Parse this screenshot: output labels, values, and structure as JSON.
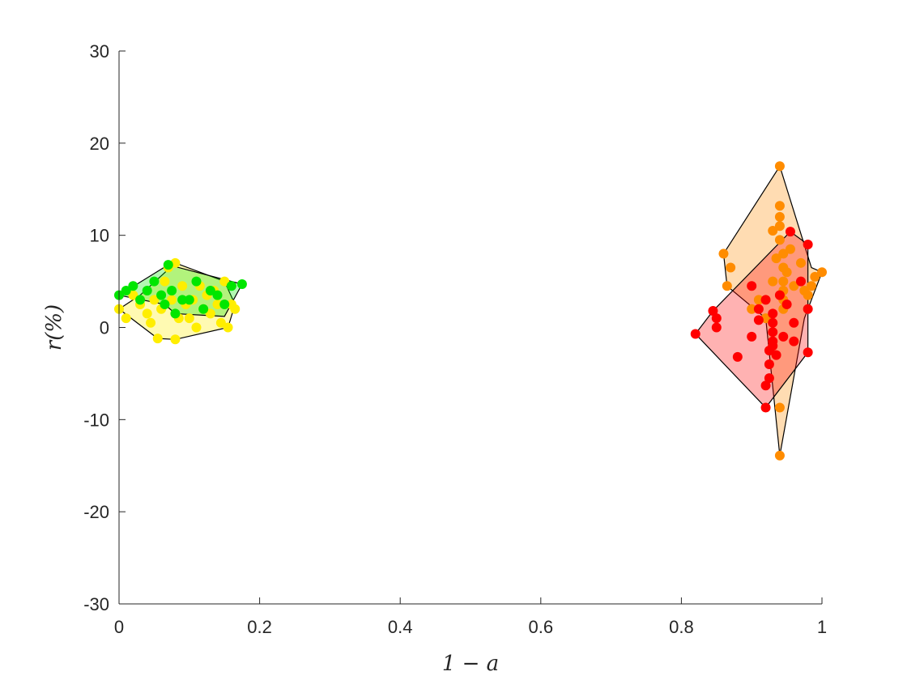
{
  "chart_data": {
    "type": "scatter",
    "title": "",
    "xlabel": "1 − a",
    "ylabel": "r(%)",
    "xlim": [
      0,
      1
    ],
    "ylim": [
      -30,
      30
    ],
    "xticks": [
      0,
      0.2,
      0.4,
      0.6,
      0.8,
      1
    ],
    "yticks": [
      -30,
      -20,
      -10,
      0,
      10,
      20,
      30
    ],
    "xtick_labels": [
      "0",
      "0.2",
      "0.4",
      "0.6",
      "0.8",
      "1"
    ],
    "ytick_labels": [
      "-30",
      "-20",
      "-10",
      "0",
      "10",
      "20",
      "30"
    ],
    "grid": false,
    "series": [
      {
        "color": "#ffee00",
        "fill_opacity": 0.3,
        "points": [
          [
            0.0,
            2.0
          ],
          [
            0.01,
            1.0
          ],
          [
            0.02,
            3.5
          ],
          [
            0.03,
            2.5
          ],
          [
            0.04,
            1.5
          ],
          [
            0.045,
            0.5
          ],
          [
            0.05,
            3.0
          ],
          [
            0.055,
            -1.2
          ],
          [
            0.06,
            2.0
          ],
          [
            0.065,
            5.0
          ],
          [
            0.07,
            6.5
          ],
          [
            0.075,
            3.0
          ],
          [
            0.08,
            -1.3
          ],
          [
            0.08,
            7.0
          ],
          [
            0.085,
            1.0
          ],
          [
            0.09,
            4.5
          ],
          [
            0.095,
            2.5
          ],
          [
            0.1,
            1.0
          ],
          [
            0.105,
            3.0
          ],
          [
            0.11,
            0.0
          ],
          [
            0.115,
            4.5
          ],
          [
            0.12,
            2.0
          ],
          [
            0.125,
            3.5
          ],
          [
            0.13,
            1.5
          ],
          [
            0.135,
            4.0
          ],
          [
            0.14,
            2.5
          ],
          [
            0.145,
            0.5
          ],
          [
            0.15,
            5.0
          ],
          [
            0.155,
            0.0
          ],
          [
            0.16,
            2.5
          ],
          [
            0.165,
            2.0
          ]
        ],
        "outline": [
          [
            0.0,
            2.0
          ],
          [
            0.055,
            -1.2
          ],
          [
            0.08,
            -1.3
          ],
          [
            0.155,
            0.0
          ],
          [
            0.165,
            2.5
          ],
          [
            0.15,
            5.0
          ],
          [
            0.08,
            7.0
          ],
          [
            0.03,
            3.5
          ]
        ]
      },
      {
        "color": "#00e600",
        "fill_opacity": 0.3,
        "points": [
          [
            0.0,
            3.5
          ],
          [
            0.01,
            4.0
          ],
          [
            0.02,
            4.5
          ],
          [
            0.03,
            3.0
          ],
          [
            0.04,
            4.0
          ],
          [
            0.05,
            5.0
          ],
          [
            0.06,
            3.5
          ],
          [
            0.065,
            2.5
          ],
          [
            0.07,
            6.8
          ],
          [
            0.075,
            4.0
          ],
          [
            0.08,
            1.5
          ],
          [
            0.09,
            3.0
          ],
          [
            0.1,
            3.0
          ],
          [
            0.11,
            5.0
          ],
          [
            0.12,
            2.0
          ],
          [
            0.13,
            4.0
          ],
          [
            0.14,
            3.5
          ],
          [
            0.15,
            2.5
          ],
          [
            0.16,
            4.5
          ],
          [
            0.175,
            4.7
          ]
        ],
        "outline": [
          [
            0.0,
            3.5
          ],
          [
            0.065,
            2.5
          ],
          [
            0.08,
            1.5
          ],
          [
            0.15,
            1.2
          ],
          [
            0.175,
            4.7
          ],
          [
            0.07,
            6.8
          ]
        ]
      },
      {
        "color": "#ff8c00",
        "fill_opacity": 0.3,
        "points": [
          [
            0.86,
            8.0
          ],
          [
            0.865,
            4.5
          ],
          [
            0.87,
            6.5
          ],
          [
            0.9,
            2.0
          ],
          [
            0.91,
            3.0
          ],
          [
            0.92,
            1.0
          ],
          [
            0.93,
            10.5
          ],
          [
            0.93,
            5.0
          ],
          [
            0.935,
            7.5
          ],
          [
            0.94,
            17.5
          ],
          [
            0.94,
            13.2
          ],
          [
            0.94,
            12.0
          ],
          [
            0.94,
            11.0
          ],
          [
            0.94,
            9.5
          ],
          [
            0.945,
            8.0
          ],
          [
            0.945,
            6.5
          ],
          [
            0.945,
            5.0
          ],
          [
            0.945,
            4.0
          ],
          [
            0.945,
            3.0
          ],
          [
            0.945,
            2.0
          ],
          [
            0.95,
            6.0
          ],
          [
            0.955,
            8.5
          ],
          [
            0.96,
            4.5
          ],
          [
            0.97,
            7.0
          ],
          [
            0.975,
            4.0
          ],
          [
            0.98,
            3.5
          ],
          [
            0.985,
            4.5
          ],
          [
            0.99,
            5.5
          ],
          [
            1.0,
            6.0
          ],
          [
            0.94,
            -8.7
          ],
          [
            0.94,
            -13.9
          ]
        ],
        "outline": [
          [
            0.86,
            8.0
          ],
          [
            0.94,
            17.5
          ],
          [
            0.985,
            6.5
          ],
          [
            1.0,
            6.0
          ],
          [
            0.975,
            1.0
          ],
          [
            0.94,
            -13.9
          ],
          [
            0.92,
            1.0
          ],
          [
            0.865,
            4.5
          ]
        ]
      },
      {
        "color": "#ff0000",
        "fill_opacity": 0.3,
        "points": [
          [
            0.82,
            -0.7
          ],
          [
            0.845,
            1.8
          ],
          [
            0.85,
            0.0
          ],
          [
            0.85,
            1.0
          ],
          [
            0.88,
            -3.2
          ],
          [
            0.9,
            -1.0
          ],
          [
            0.91,
            0.8
          ],
          [
            0.91,
            2.0
          ],
          [
            0.92,
            3.0
          ],
          [
            0.92,
            -8.7
          ],
          [
            0.925,
            -2.5
          ],
          [
            0.925,
            -4.0
          ],
          [
            0.925,
            -5.5
          ],
          [
            0.93,
            -1.5
          ],
          [
            0.93,
            -0.5
          ],
          [
            0.93,
            0.5
          ],
          [
            0.93,
            1.5
          ],
          [
            0.93,
            -2.0
          ],
          [
            0.935,
            -3.0
          ],
          [
            0.94,
            3.5
          ],
          [
            0.945,
            -1.0
          ],
          [
            0.95,
            2.5
          ],
          [
            0.955,
            10.4
          ],
          [
            0.96,
            0.5
          ],
          [
            0.96,
            -1.5
          ],
          [
            0.97,
            5.0
          ],
          [
            0.98,
            9.0
          ],
          [
            0.98,
            2.0
          ],
          [
            0.98,
            -2.7
          ],
          [
            0.9,
            4.5
          ],
          [
            0.92,
            -6.3
          ]
        ],
        "outline": [
          [
            0.82,
            -0.7
          ],
          [
            0.845,
            1.8
          ],
          [
            0.955,
            10.4
          ],
          [
            0.98,
            9.0
          ],
          [
            0.98,
            -2.7
          ],
          [
            0.92,
            -8.7
          ]
        ]
      }
    ]
  }
}
